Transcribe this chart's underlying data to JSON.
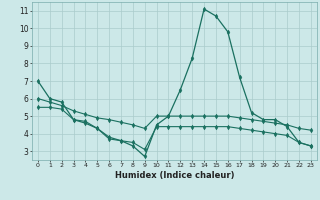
{
  "xlabel": "Humidex (Indice chaleur)",
  "bg_color": "#cce8e8",
  "grid_color": "#aacccc",
  "line_color": "#1a7060",
  "xlim": [
    -0.5,
    23.5
  ],
  "ylim": [
    2.5,
    11.5
  ],
  "xticks": [
    0,
    1,
    2,
    3,
    4,
    5,
    6,
    7,
    8,
    9,
    10,
    11,
    12,
    13,
    14,
    15,
    16,
    17,
    18,
    19,
    20,
    21,
    22,
    23
  ],
  "yticks": [
    3,
    4,
    5,
    6,
    7,
    8,
    9,
    10,
    11
  ],
  "line1_x": [
    0,
    1,
    2,
    3,
    4,
    5,
    6,
    7,
    8,
    9,
    10,
    11,
    12,
    13,
    14,
    15,
    16,
    17,
    18,
    19,
    20,
    21,
    22,
    23
  ],
  "line1_y": [
    7.0,
    6.0,
    5.8,
    4.8,
    4.6,
    4.3,
    3.8,
    3.6,
    3.3,
    2.7,
    4.5,
    5.0,
    6.5,
    8.3,
    11.1,
    10.7,
    9.8,
    7.2,
    5.2,
    4.8,
    4.8,
    4.4,
    3.5,
    3.3
  ],
  "line2_x": [
    0,
    1,
    2,
    3,
    4,
    5,
    6,
    7,
    8,
    9,
    10,
    11,
    12,
    13,
    14,
    15,
    16,
    17,
    18,
    19,
    20,
    21,
    22,
    23
  ],
  "line2_y": [
    6.0,
    5.8,
    5.6,
    5.3,
    5.1,
    4.9,
    4.8,
    4.65,
    4.5,
    4.3,
    5.0,
    5.0,
    5.0,
    5.0,
    5.0,
    5.0,
    5.0,
    4.9,
    4.8,
    4.7,
    4.6,
    4.5,
    4.3,
    4.2
  ],
  "line3_x": [
    0,
    1,
    2,
    3,
    4,
    5,
    6,
    7,
    8,
    9,
    10,
    11,
    12,
    13,
    14,
    15,
    16,
    17,
    18,
    19,
    20,
    21,
    22,
    23
  ],
  "line3_y": [
    5.5,
    5.5,
    5.4,
    4.8,
    4.7,
    4.3,
    3.7,
    3.6,
    3.5,
    3.1,
    4.4,
    4.4,
    4.4,
    4.4,
    4.4,
    4.4,
    4.4,
    4.3,
    4.2,
    4.1,
    4.0,
    3.9,
    3.5,
    3.3
  ]
}
